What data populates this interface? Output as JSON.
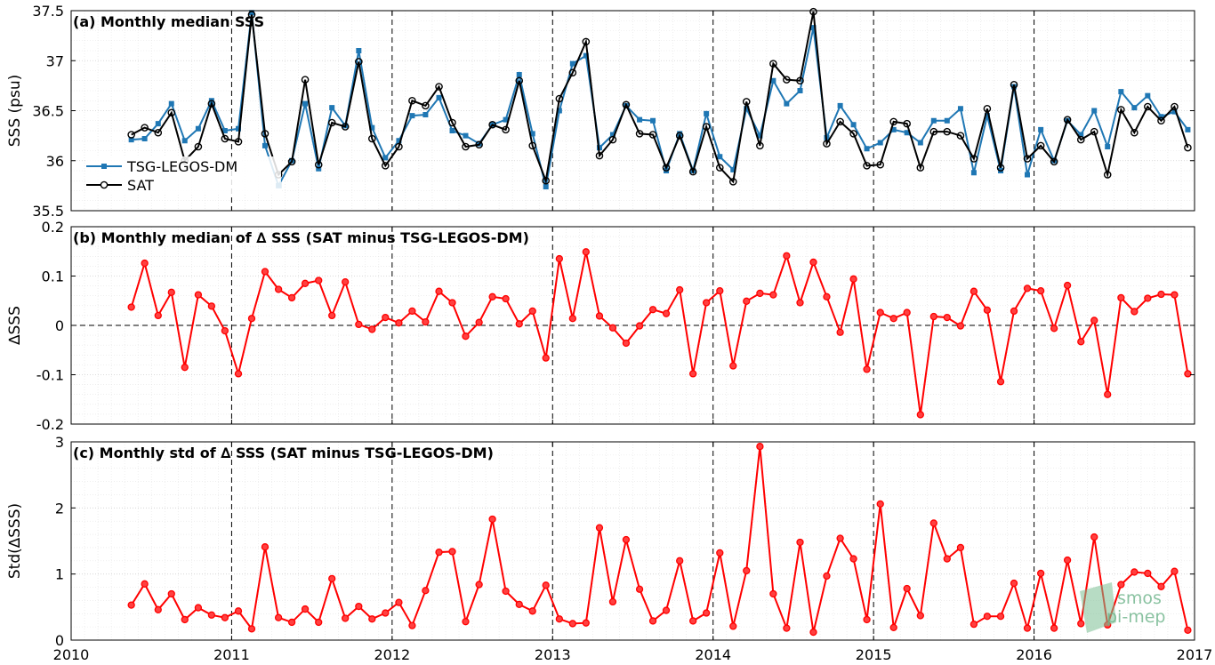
{
  "chart_data": [
    {
      "type": "line",
      "title": "(a) Monthly median SSS",
      "ylabel": "SSS (psu)",
      "ylim": [
        35.5,
        37.5
      ],
      "xlim": [
        2010,
        2017
      ],
      "yticks": [
        "35.5",
        "36",
        "36.5",
        "37",
        "37.5"
      ],
      "legend": "left",
      "grid": true,
      "series": [
        {
          "name": "TSG-LEGOS-DM",
          "color": "#1f77b4",
          "x": [
            2010.375,
            2010.458,
            2010.542,
            2010.625,
            2010.708,
            2010.792,
            2010.875,
            2010.958,
            2011.042,
            2011.125,
            2011.208,
            2011.292,
            2011.375,
            2011.458,
            2011.542,
            2011.625,
            2011.708,
            2011.792,
            2011.875,
            2011.958,
            2012.042,
            2012.125,
            2012.208,
            2012.292,
            2012.375,
            2012.458,
            2012.542,
            2012.625,
            2012.708,
            2012.792,
            2012.875,
            2012.958,
            2013.042,
            2013.125,
            2013.208,
            2013.292,
            2013.375,
            2013.458,
            2013.542,
            2013.625,
            2013.708,
            2013.792,
            2013.875,
            2013.958,
            2014.042,
            2014.125,
            2014.208,
            2014.292,
            2014.375,
            2014.458,
            2014.542,
            2014.625,
            2014.708,
            2014.792,
            2014.875,
            2014.958,
            2015.042,
            2015.125,
            2015.208,
            2015.292,
            2015.375,
            2015.458,
            2015.542,
            2015.625,
            2015.708,
            2015.792,
            2015.875,
            2015.958,
            2016.042,
            2016.125,
            2016.208,
            2016.292,
            2016.375,
            2016.458,
            2016.542,
            2016.625,
            2016.708,
            2016.792,
            2016.875,
            2016.958
          ],
          "y": [
            36.21,
            36.22,
            36.37,
            36.57,
            36.2,
            36.32,
            36.6,
            36.3,
            36.32,
            37.48,
            36.15,
            35.75,
            36.0,
            36.57,
            35.92,
            36.53,
            36.35,
            37.1,
            36.33,
            36.03,
            36.2,
            36.45,
            36.46,
            36.63,
            36.3,
            36.25,
            36.17,
            36.36,
            36.41,
            36.86,
            36.27,
            35.74,
            36.5,
            36.97,
            37.05,
            36.13,
            36.26,
            36.55,
            36.41,
            36.4,
            35.9,
            36.27,
            35.9,
            36.47,
            36.04,
            35.91,
            36.52,
            36.25,
            36.8,
            36.57,
            36.7,
            37.33,
            36.23,
            36.55,
            36.36,
            36.12,
            36.18,
            36.31,
            36.28,
            36.18,
            36.4,
            36.4,
            36.52,
            35.88,
            36.45,
            35.9,
            36.74,
            35.86,
            36.31,
            36.0,
            36.4,
            36.26,
            36.5,
            36.14,
            36.69,
            36.53,
            36.65,
            36.44,
            36.49,
            36.31
          ]
        },
        {
          "name": "SAT",
          "color": "#000000",
          "x": [
            2010.375,
            2010.458,
            2010.542,
            2010.625,
            2010.708,
            2010.792,
            2010.875,
            2010.958,
            2011.042,
            2011.125,
            2011.208,
            2011.292,
            2011.375,
            2011.458,
            2011.542,
            2011.625,
            2011.708,
            2011.792,
            2011.875,
            2011.958,
            2012.042,
            2012.125,
            2012.208,
            2012.292,
            2012.375,
            2012.458,
            2012.542,
            2012.625,
            2012.708,
            2012.792,
            2012.875,
            2012.958,
            2013.042,
            2013.125,
            2013.208,
            2013.292,
            2013.375,
            2013.458,
            2013.542,
            2013.625,
            2013.708,
            2013.792,
            2013.875,
            2013.958,
            2014.042,
            2014.125,
            2014.208,
            2014.292,
            2014.375,
            2014.458,
            2014.542,
            2014.625,
            2014.708,
            2014.792,
            2014.875,
            2014.958,
            2015.042,
            2015.125,
            2015.208,
            2015.292,
            2015.375,
            2015.458,
            2015.542,
            2015.625,
            2015.708,
            2015.792,
            2015.875,
            2015.958,
            2016.042,
            2016.125,
            2016.208,
            2016.292,
            2016.375,
            2016.458,
            2016.542,
            2016.625,
            2016.708,
            2016.792,
            2016.875,
            2016.958
          ],
          "y": [
            36.26,
            36.33,
            36.28,
            36.48,
            36.0,
            36.14,
            36.57,
            36.22,
            36.19,
            37.46,
            36.27,
            35.86,
            35.99,
            36.81,
            35.96,
            36.38,
            36.34,
            36.99,
            36.22,
            35.95,
            36.14,
            36.6,
            36.55,
            36.74,
            36.38,
            36.14,
            36.16,
            36.36,
            36.31,
            36.8,
            36.15,
            35.8,
            36.62,
            36.88,
            37.19,
            36.05,
            36.21,
            36.56,
            36.27,
            36.26,
            35.93,
            36.25,
            35.89,
            36.34,
            35.93,
            35.79,
            36.59,
            36.15,
            36.97,
            36.81,
            36.8,
            37.49,
            36.17,
            36.39,
            36.27,
            35.95,
            35.96,
            36.39,
            36.37,
            35.93,
            36.29,
            36.29,
            36.25,
            36.02,
            36.52,
            35.93,
            36.76,
            36.02,
            36.15,
            35.99,
            36.41,
            36.21,
            36.29,
            35.86,
            36.51,
            36.28,
            36.54,
            36.4,
            36.54,
            36.13
          ]
        }
      ]
    },
    {
      "type": "line",
      "title": "(b) Monthly median of ∆ SSS (SAT minus TSG-LEGOS-DM)",
      "ylabel": "∆SSS",
      "ylim": [
        -0.2,
        0.2
      ],
      "xlim": [
        2010,
        2017
      ],
      "yticks": [
        "-0.2",
        "-0.1",
        "0",
        "0.1",
        "0.2"
      ],
      "zero_line": true,
      "grid": true,
      "series": [
        {
          "color": "#ff0000",
          "x": [
            2010.375,
            2010.458,
            2010.542,
            2010.625,
            2010.708,
            2010.792,
            2010.875,
            2010.958,
            2011.042,
            2011.125,
            2011.208,
            2011.292,
            2011.375,
            2011.458,
            2011.542,
            2011.625,
            2011.708,
            2011.792,
            2011.875,
            2011.958,
            2012.042,
            2012.125,
            2012.208,
            2012.292,
            2012.375,
            2012.458,
            2012.542,
            2012.625,
            2012.708,
            2012.792,
            2012.875,
            2012.958,
            2013.042,
            2013.125,
            2013.208,
            2013.292,
            2013.375,
            2013.458,
            2013.542,
            2013.625,
            2013.708,
            2013.792,
            2013.875,
            2013.958,
            2014.042,
            2014.125,
            2014.208,
            2014.292,
            2014.375,
            2014.458,
            2014.542,
            2014.625,
            2014.708,
            2014.792,
            2014.875,
            2014.958,
            2015.042,
            2015.125,
            2015.208,
            2015.292,
            2015.375,
            2015.458,
            2015.542,
            2015.625,
            2015.708,
            2015.792,
            2015.875,
            2015.958,
            2016.042,
            2016.125,
            2016.208,
            2016.292,
            2016.375,
            2016.458,
            2016.542,
            2016.625,
            2016.708,
            2016.792,
            2016.875,
            2016.958
          ],
          "y": [
            0.037,
            0.126,
            0.02,
            0.067,
            -0.085,
            0.062,
            0.039,
            -0.011,
            -0.098,
            0.014,
            0.109,
            0.073,
            0.056,
            0.085,
            0.091,
            0.02,
            0.088,
            0.002,
            -0.008,
            0.016,
            0.005,
            0.029,
            0.007,
            0.069,
            0.046,
            -0.022,
            0.006,
            0.058,
            0.054,
            0.003,
            0.029,
            -0.066,
            0.135,
            0.014,
            0.149,
            0.019,
            -0.005,
            -0.036,
            -0.001,
            0.032,
            0.024,
            0.072,
            -0.098,
            0.046,
            0.07,
            -0.082,
            0.049,
            0.065,
            0.062,
            0.141,
            0.046,
            0.128,
            0.058,
            -0.014,
            0.094,
            -0.089,
            0.026,
            0.014,
            0.026,
            -0.181,
            0.018,
            0.016,
            -0.001,
            0.069,
            0.031,
            -0.114,
            0.029,
            0.075,
            0.07,
            -0.006,
            0.081,
            -0.033,
            0.01,
            -0.14,
            0.056,
            0.028,
            0.055,
            0.063,
            0.062,
            -0.098
          ]
        }
      ]
    },
    {
      "type": "line",
      "title": "(c) Monthly std of ∆ SSS (SAT minus TSG-LEGOS-DM)",
      "ylabel": "Std(∆SSS)",
      "xlabel_ticks": [
        "2010",
        "2011",
        "2012",
        "2013",
        "2014",
        "2015",
        "2016",
        "2017"
      ],
      "ylim": [
        0,
        3
      ],
      "xlim": [
        2010,
        2017
      ],
      "yticks": [
        "0",
        "1",
        "2",
        "3"
      ],
      "grid": true,
      "series": [
        {
          "color": "#ff0000",
          "x": [
            2010.375,
            2010.458,
            2010.542,
            2010.625,
            2010.708,
            2010.792,
            2010.875,
            2010.958,
            2011.042,
            2011.125,
            2011.208,
            2011.292,
            2011.375,
            2011.458,
            2011.542,
            2011.625,
            2011.708,
            2011.792,
            2011.875,
            2011.958,
            2012.042,
            2012.125,
            2012.208,
            2012.292,
            2012.375,
            2012.458,
            2012.542,
            2012.625,
            2012.708,
            2012.792,
            2012.875,
            2012.958,
            2013.042,
            2013.125,
            2013.208,
            2013.292,
            2013.375,
            2013.458,
            2013.542,
            2013.625,
            2013.708,
            2013.792,
            2013.875,
            2013.958,
            2014.042,
            2014.125,
            2014.208,
            2014.292,
            2014.375,
            2014.458,
            2014.542,
            2014.625,
            2014.708,
            2014.792,
            2014.875,
            2014.958,
            2015.042,
            2015.125,
            2015.208,
            2015.292,
            2015.375,
            2015.458,
            2015.542,
            2015.625,
            2015.708,
            2015.792,
            2015.875,
            2015.958,
            2016.042,
            2016.125,
            2016.208,
            2016.292,
            2016.375,
            2016.458,
            2016.542,
            2016.625,
            2016.708,
            2016.792,
            2016.875,
            2016.958
          ],
          "y": [
            0.53,
            0.85,
            0.46,
            0.7,
            0.31,
            0.49,
            0.38,
            0.34,
            0.44,
            0.17,
            1.41,
            0.34,
            0.27,
            0.47,
            0.27,
            0.93,
            0.33,
            0.51,
            0.32,
            0.41,
            0.57,
            0.22,
            0.75,
            1.33,
            1.34,
            0.28,
            0.84,
            1.83,
            0.74,
            0.54,
            0.44,
            0.83,
            0.32,
            0.25,
            0.26,
            1.7,
            0.58,
            1.52,
            0.77,
            0.29,
            0.45,
            1.2,
            0.29,
            0.41,
            1.32,
            0.21,
            1.05,
            2.93,
            0.7,
            0.18,
            1.48,
            0.12,
            0.97,
            1.54,
            1.23,
            0.31,
            2.06,
            0.19,
            0.78,
            0.37,
            1.77,
            1.23,
            1.4,
            0.24,
            0.36,
            0.36,
            0.86,
            0.18,
            1.01,
            0.18,
            1.21,
            0.25,
            1.56,
            0.23,
            0.84,
            1.03,
            1.01,
            0.81,
            1.04,
            0.15
          ]
        }
      ]
    }
  ],
  "x_tick_labels": [
    "2010",
    "2011",
    "2012",
    "2013",
    "2014",
    "2015",
    "2016",
    "2017"
  ],
  "watermark": {
    "line1": "smos",
    "line2": "pi-mep",
    "color": "#5aaa78"
  }
}
